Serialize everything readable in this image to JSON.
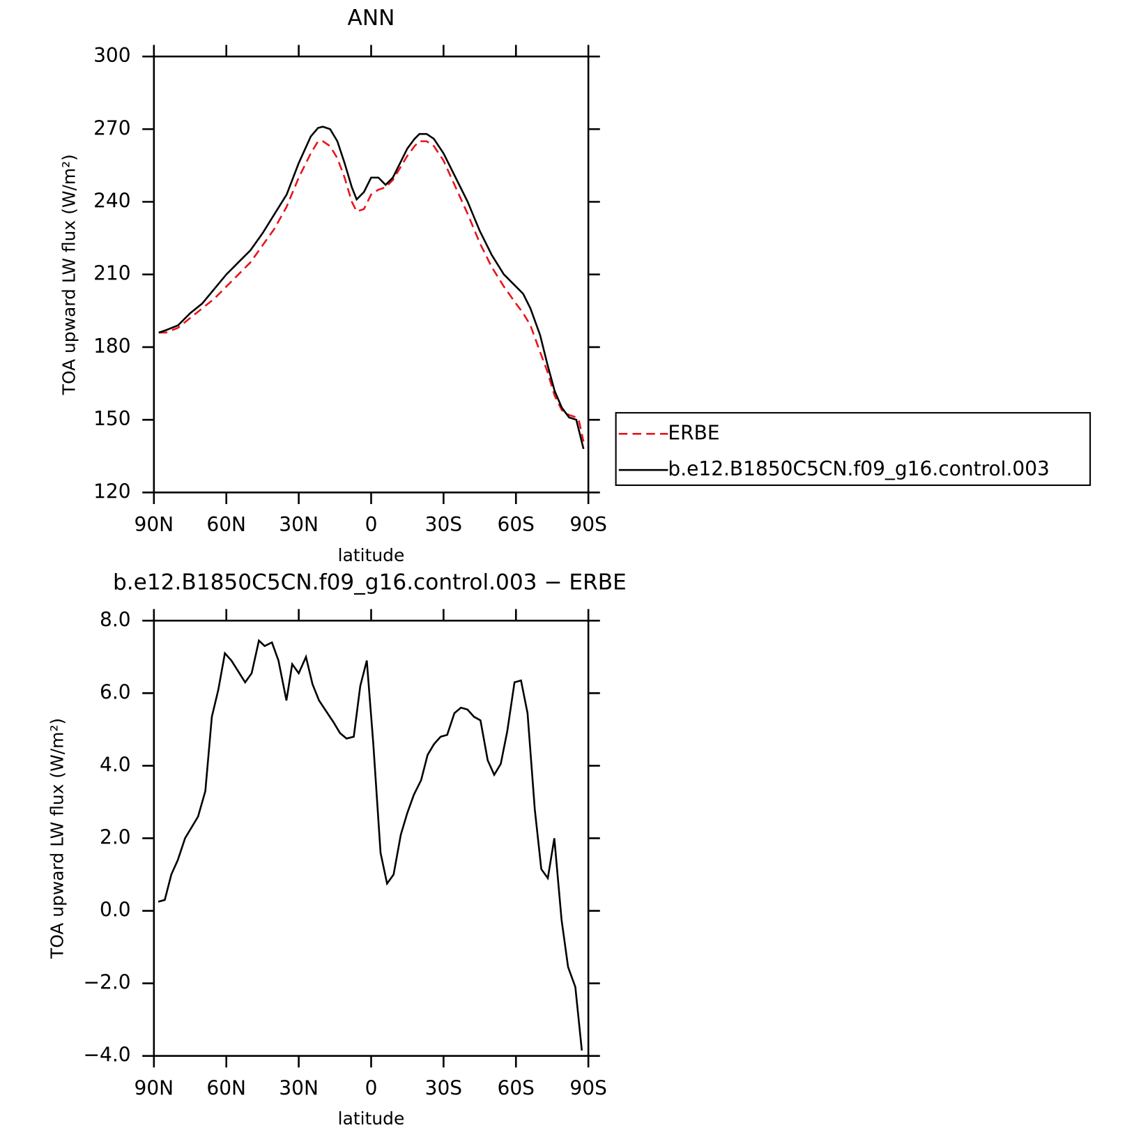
{
  "chart_data": [
    {
      "type": "line",
      "title": "ANN",
      "xlabel": "latitude",
      "ylabel": "TOA upward LW flux (W/m²)",
      "x": [
        88,
        85,
        80,
        75,
        70,
        65,
        60,
        55,
        50,
        45,
        40,
        35,
        30,
        25,
        22,
        20,
        17,
        14,
        11,
        8,
        6,
        3,
        0,
        -3,
        -6,
        -9,
        -12,
        -15,
        -18,
        -20,
        -23,
        -26,
        -30,
        -35,
        -40,
        -45,
        -50,
        -55,
        -60,
        -63,
        -66,
        -70,
        -73,
        -76,
        -79,
        -82,
        -85,
        -86,
        -88
      ],
      "series": [
        {
          "name": "ERBE",
          "color": "#e8141a",
          "dashed": true,
          "values": [
            186,
            186,
            188,
            192,
            196,
            200,
            205,
            210,
            215,
            222,
            229,
            238,
            250,
            260,
            265,
            265,
            263,
            258,
            250,
            240,
            236,
            237,
            243,
            245,
            246,
            249,
            254,
            259,
            263,
            265,
            265,
            263,
            257,
            246,
            235,
            223,
            213,
            205,
            198,
            194,
            189,
            178,
            170,
            160,
            154,
            152,
            151,
            150,
            141
          ]
        },
        {
          "name": "b.e12.B1850C5CN.f09_g16.control.003",
          "color": "#000000",
          "dashed": false,
          "values": [
            186,
            187,
            189,
            194,
            198,
            204,
            210,
            215,
            220,
            227,
            235,
            243,
            256,
            267,
            270.5,
            271,
            270,
            265,
            256,
            246,
            241,
            244,
            250,
            250,
            247,
            250,
            256,
            262,
            266,
            268,
            268,
            266,
            260,
            250,
            240,
            228,
            218,
            210,
            205,
            202,
            196,
            185,
            173,
            162,
            155,
            151,
            150,
            146,
            138
          ]
        }
      ],
      "xlim": [
        90,
        -90
      ],
      "xticks": [
        {
          "value": 90,
          "label": "90N"
        },
        {
          "value": 60,
          "label": "60N"
        },
        {
          "value": 30,
          "label": "30N"
        },
        0,
        {
          "value": -30,
          "label": "30S"
        },
        {
          "value": -60,
          "label": "60S"
        },
        {
          "value": -90,
          "label": "90S"
        }
      ],
      "ylim": [
        120,
        300
      ],
      "yticks": [
        120,
        150,
        180,
        210,
        240,
        270,
        300
      ],
      "legend": "outside right"
    },
    {
      "type": "line",
      "title": "b.e12.B1850C5CN.f09_g16.control.003 − ERBE",
      "xlabel": "latitude",
      "ylabel": "TOA upward LW flux (W/m²)",
      "x": [
        88.2,
        85.5,
        82.8,
        80.1,
        77.1,
        71.7,
        68.7,
        66,
        63.3,
        60.6,
        57.9,
        52.2,
        49.5,
        46.5,
        44.1,
        41.1,
        38.4,
        35.1,
        32.7,
        30,
        27,
        24.3,
        21.6,
        18.6,
        15.6,
        12.9,
        10.2,
        7.2,
        4.5,
        1.8,
        -0.9,
        -3.9,
        -6.6,
        -9.3,
        -12.3,
        -15,
        -17.7,
        -20.7,
        -23.4,
        -26.1,
        -28.8,
        -31.5,
        -34.5,
        -37.2,
        -39.9,
        -42.6,
        -45.3,
        -48.3,
        -51,
        -53.7,
        -56.4,
        -59.4,
        -62.1,
        -64.8,
        -67.8,
        -70.5,
        -73.2,
        -75.9,
        -78.9,
        -81.6,
        -84.6,
        -87.3
      ],
      "series": [
        {
          "color": "#000000",
          "dashed": false,
          "values": [
            0.25,
            0.3,
            1.0,
            1.4,
            2.0,
            2.6,
            3.3,
            5.35,
            6.1,
            7.1,
            6.9,
            6.3,
            6.55,
            7.45,
            7.3,
            7.4,
            6.9,
            5.8,
            6.8,
            6.55,
            7.0,
            6.25,
            5.8,
            5.5,
            5.2,
            4.9,
            4.75,
            4.8,
            6.2,
            6.9,
            4.6,
            1.6,
            0.75,
            1.0,
            2.1,
            2.7,
            3.2,
            3.6,
            4.3,
            4.6,
            4.8,
            4.85,
            5.45,
            5.6,
            5.55,
            5.35,
            5.25,
            4.15,
            3.75,
            4.05,
            4.95,
            6.3,
            6.35,
            5.45,
            2.8,
            1.15,
            0.9,
            2.0,
            -0.25,
            -1.55,
            -2.1,
            -3.85
          ]
        }
      ],
      "xlim": [
        90,
        -90
      ],
      "xticks": [
        {
          "value": 90,
          "label": "90N"
        },
        {
          "value": 60,
          "label": "60N"
        },
        {
          "value": 30,
          "label": "30N"
        },
        0,
        {
          "value": -30,
          "label": "30S"
        },
        {
          "value": -60,
          "label": "60S"
        },
        {
          "value": -90,
          "label": "90S"
        }
      ],
      "ylim": [
        -4,
        8
      ],
      "yticks": [
        {
          "value": -4,
          "label": "−4.0"
        },
        {
          "value": -2,
          "label": "−2.0"
        },
        {
          "value": 0,
          "label": "0.0"
        },
        {
          "value": 2,
          "label": "2.0"
        },
        {
          "value": 4,
          "label": "4.0"
        },
        {
          "value": 6,
          "label": "6.0"
        },
        {
          "value": 8,
          "label": "8.0"
        }
      ]
    }
  ]
}
